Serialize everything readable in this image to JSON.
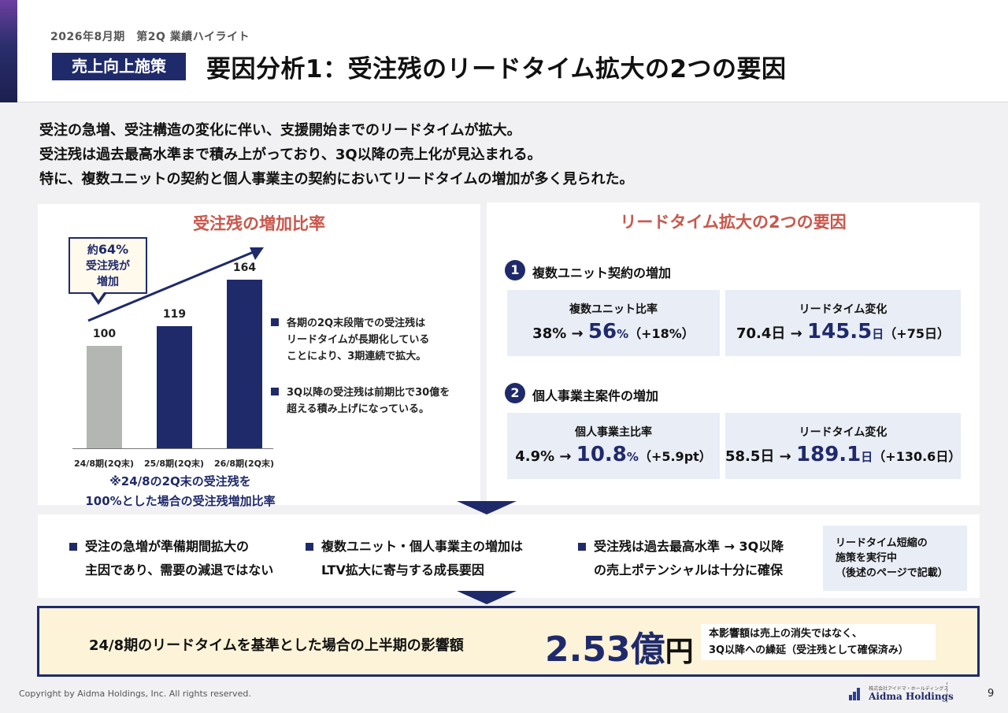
{
  "header": {
    "subtitle": "2026年8月期　第2Q 業績ハイライト",
    "tag": "売上向上施策",
    "title": "要因分析1：受注残のリードタイム拡大の2つの要因"
  },
  "intro": [
    "受注の急増、受注構造の変化に伴い、支援開始までのリードタイムが拡大。",
    "受注残は過去最高水準まで積み上がっており、3Q以降の売上化が見込まれる。",
    "特に、複数ユニットの契約と個人事業主の契約においてリードタイムの増加が多く見られた。"
  ],
  "left_panel": {
    "title": "受注残の増加比率",
    "callout": {
      "prefix": "約",
      "value": "64%",
      "line2": "受注残が",
      "line3": "増加"
    },
    "note": [
      "※24/8の2Q末の受注残を",
      "100%とした場合の受注残増加比率"
    ],
    "bullets": [
      [
        "各期の2Q末段階での受注残は",
        "リードタイムが長期化している",
        "ことにより、3期連続で拡大。"
      ],
      [
        "3Q以降の受注残は前期比で30億を",
        "超える積み上げになっている。"
      ]
    ]
  },
  "chart_data": {
    "type": "bar",
    "title": "受注残の増加比率",
    "categories": [
      "24/8期(2Q末)",
      "25/8期(2Q末)",
      "26/8期(2Q末)"
    ],
    "values": [
      100,
      119,
      164
    ],
    "value_labels": [
      "100",
      "119",
      "164"
    ],
    "ylim": [
      0,
      164
    ],
    "colors": [
      "#b3b6b2",
      "#1f2a6b",
      "#1f2a6b"
    ],
    "trend_arrow": true
  },
  "right_panel": {
    "title": "リードタイム拡大の2つの要因",
    "factors": [
      {
        "num": "1",
        "heading": "複数ユニット契約の増加",
        "ratio": {
          "label": "複数ユニット比率",
          "before": "38% → ",
          "after": "56",
          "unit": "%",
          "diff": "（+18%）"
        },
        "lead": {
          "label": "リードタイム変化",
          "before": "70.4日 → ",
          "after": "145.5",
          "unit": "日",
          "diff": "（+75日）"
        }
      },
      {
        "num": "2",
        "heading": "個人事業主案件の増加",
        "ratio": {
          "label": "個人事業主比率",
          "before": "4.9% → ",
          "after": "10.8",
          "unit": "%",
          "diff": "（+5.9pt）"
        },
        "lead": {
          "label": "リードタイム変化",
          "before": "58.5日 → ",
          "after": "189.1",
          "unit": "日",
          "diff": "（+130.6日）"
        }
      }
    ]
  },
  "middle": {
    "bullets": [
      [
        "受注の急増が準備期間拡大の",
        "主因であり、需要の減退ではない"
      ],
      [
        "複数ユニット・個人事業主の増加は",
        "LTV拡大に寄与する成長要因"
      ],
      [
        "受注残は過去最高水準 → 3Q以降",
        "の売上ポテンシャルは十分に確保"
      ]
    ],
    "action_box": [
      "リードタイム短縮の",
      "施策を実行中",
      "（後述のページで記載）"
    ]
  },
  "bottom": {
    "text": "24/8期のリードタイムを基準とした場合の上半期の影響額",
    "amount": "2.53億",
    "unit": "円",
    "note": [
      "本影響額は売上の消失ではなく、",
      "3Q以降への繰延（受注残として確保済み）"
    ]
  },
  "footer": {
    "copyright": "Copyright by Aidma Holdings, Inc. All rights reserved.",
    "logo_small": "株式会社アイドマ・ホールディングス",
    "logo_name": "Aidma Holdings",
    "page": "9"
  },
  "colors": {
    "navy": "#1f2a6b",
    "accent_red": "#c9574b",
    "gray_bar": "#b3b6b2",
    "light_box": "#e9edf6",
    "cream": "#fcf3d8"
  }
}
